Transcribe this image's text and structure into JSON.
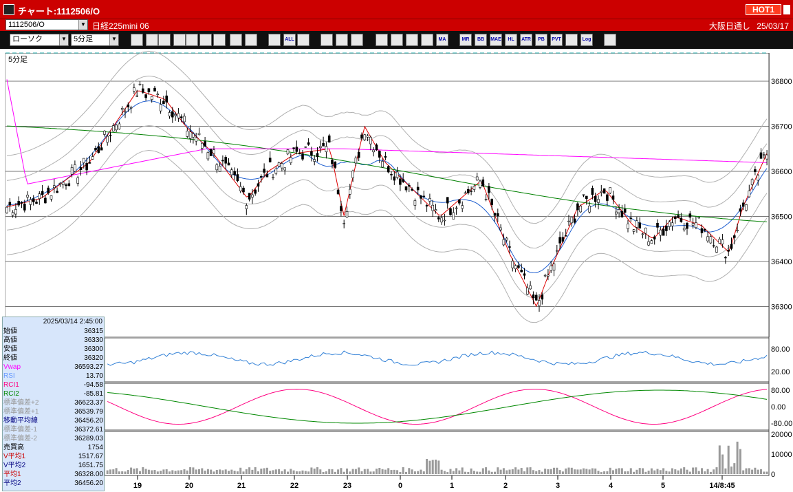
{
  "window": {
    "title": "チャート:1112506/O",
    "hot_label": "HOT1"
  },
  "toolbar_row1": {
    "symbol_code": "1112506/O",
    "instrument": "日経225mini 06",
    "session": "大阪日通し",
    "date": "25/03/17"
  },
  "toolbar_row2": {
    "chart_type": "ローソク",
    "interval": "5分足",
    "icons": [
      "zoom-icon",
      "split-icon",
      "pen-icon",
      "draw-icon",
      "cursor-icon",
      "refresh-icon",
      "list-icon",
      "trash-icon",
      "candle-icon",
      "ohlc-icon",
      "all-icon",
      "settings-icon",
      "tool-icon",
      "color-icon",
      "line-icon",
      "search-icon",
      "grid-icon",
      "cross-icon",
      "disabled-icon",
      "ma-icon",
      "mr-icon",
      "bb-icon",
      "mae-icon",
      "hl-icon",
      "atr-icon",
      "pb-icon",
      "pvt-icon",
      "box-icon",
      "log-icon",
      "exit-icon"
    ],
    "icon_labels": {
      "all": "ALL",
      "ma": "MA",
      "mr": "MR",
      "bb": "BB",
      "mae": "MAE",
      "hl": "HL",
      "atr": "ATR",
      "pb": "PB",
      "pvt": "PVT",
      "log": "Log"
    }
  },
  "chart_title": "5分足",
  "price_axis": [
    "36800",
    "36700",
    "36600",
    "36500",
    "36400",
    "36300"
  ],
  "rsi_axis": [
    "80.00",
    "20.00"
  ],
  "rci_axis": [
    "80.00",
    "0.00",
    "-80.00"
  ],
  "volume_axis": [
    "20000",
    "10000",
    "0"
  ],
  "x_axis": [
    "19",
    "20",
    "21",
    "22",
    "23",
    "0",
    "1",
    "2",
    "3",
    "4",
    "5",
    "14/8:45"
  ],
  "info": {
    "datetime": "2025/03/14 2:45:00",
    "rows": [
      {
        "k": "始値",
        "v": "36315",
        "color": "#000000"
      },
      {
        "k": "高値",
        "v": "36330",
        "color": "#000000"
      },
      {
        "k": "安値",
        "v": "36300",
        "color": "#000000"
      },
      {
        "k": "終値",
        "v": "36320",
        "color": "#000000"
      },
      {
        "k": "Vwap",
        "v": "36593.27",
        "color": "#ff00ff"
      },
      {
        "k": "RSI",
        "v": "13.70",
        "color": "#6699ff"
      },
      {
        "k": "RCI1",
        "v": "-94.58",
        "color": "#ff0080"
      },
      {
        "k": "RCI2",
        "v": "-85.81",
        "color": "#008800"
      },
      {
        "k": "標準偏差+2",
        "v": "36623.37",
        "color": "#999999"
      },
      {
        "k": "標準偏差+1",
        "v": "36539.79",
        "color": "#999999"
      },
      {
        "k": "移動平均線",
        "v": "36456.20",
        "color": "#000080"
      },
      {
        "k": "標準偏差-1",
        "v": "36372.61",
        "color": "#999999"
      },
      {
        "k": "標準偏差-2",
        "v": "36289.03",
        "color": "#999999"
      },
      {
        "k": "売買高",
        "v": "1754",
        "color": "#000000"
      },
      {
        "k": "V平均1",
        "v": "1517.67",
        "color": "#cc0000"
      },
      {
        "k": "V平均2",
        "v": "1651.75",
        "color": "#000080"
      },
      {
        "k": "平均1",
        "v": "36328.00",
        "color": "#cc0000"
      },
      {
        "k": "平均2",
        "v": "36456.20",
        "color": "#000080"
      }
    ]
  },
  "colors": {
    "titlebar": "#cc0000",
    "bull": "#ffffff",
    "bear": "#000000",
    "ma_short": "#dd0000",
    "ma_mid": "#1f5fd0",
    "ma_long": "#008000",
    "vwap": "#ff00ff",
    "bands": "#b0b0b0",
    "rsi": "#2f7fd6",
    "rci1": "#ff0080",
    "rci2": "#008800",
    "volume": "#9a9a9a"
  }
}
